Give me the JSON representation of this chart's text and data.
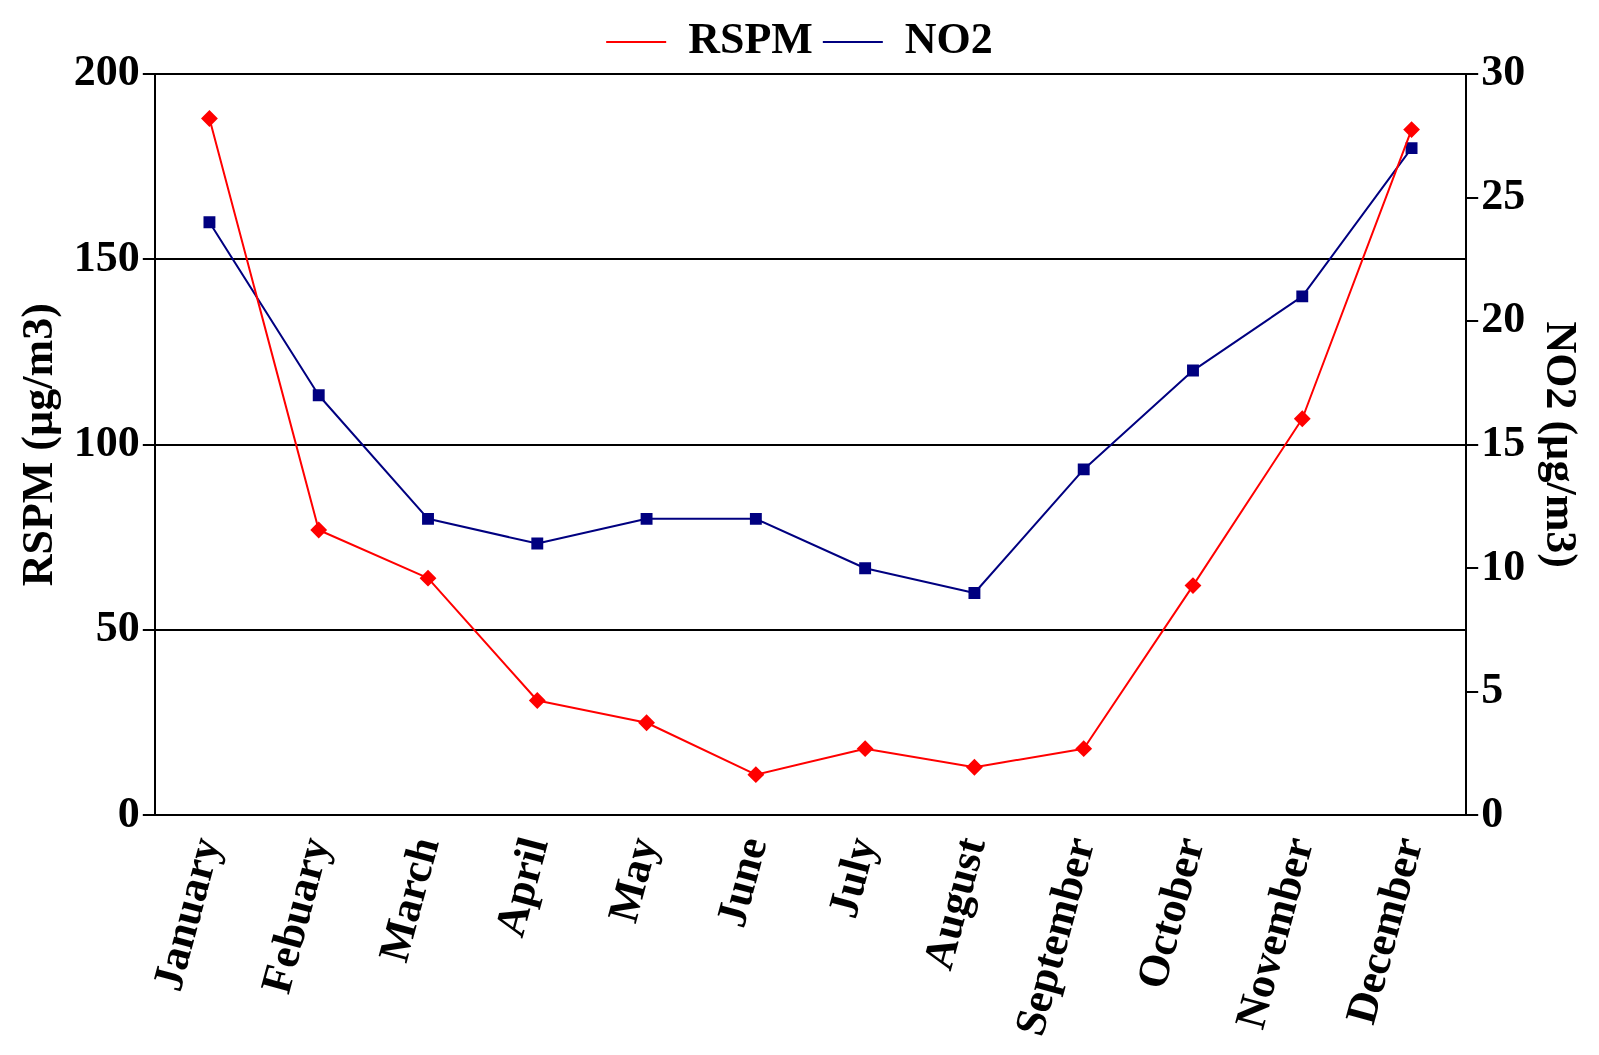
{
  "chart_data": {
    "type": "line",
    "categories": [
      "January",
      "Febuary",
      "March",
      "April",
      "May",
      "June",
      "July",
      "August",
      "September",
      "October",
      "November",
      "December"
    ],
    "series": [
      {
        "name": "RSPM",
        "color": "#ff0000",
        "marker": "diamond",
        "values": [
          188,
          77,
          64,
          31,
          25,
          11,
          18,
          13,
          18,
          62,
          107,
          185
        ]
      },
      {
        "name": "NO2",
        "color": "#000080",
        "marker": "square",
        "axis": "y2",
        "values": [
          24,
          17,
          12,
          11,
          12,
          12,
          10,
          9,
          14,
          18,
          21,
          27
        ]
      }
    ],
    "ylabel": "RSPM (µg/m3)",
    "y2label": "NO2 (µg/m3)",
    "ylim": [
      0,
      200
    ],
    "yticks": [
      0,
      50,
      100,
      150,
      200
    ],
    "y2lim": [
      0,
      30
    ],
    "y2ticks": [
      0,
      5,
      10,
      15,
      20,
      25,
      30
    ],
    "grid": "y",
    "legend": "top",
    "line_style": "solid"
  }
}
